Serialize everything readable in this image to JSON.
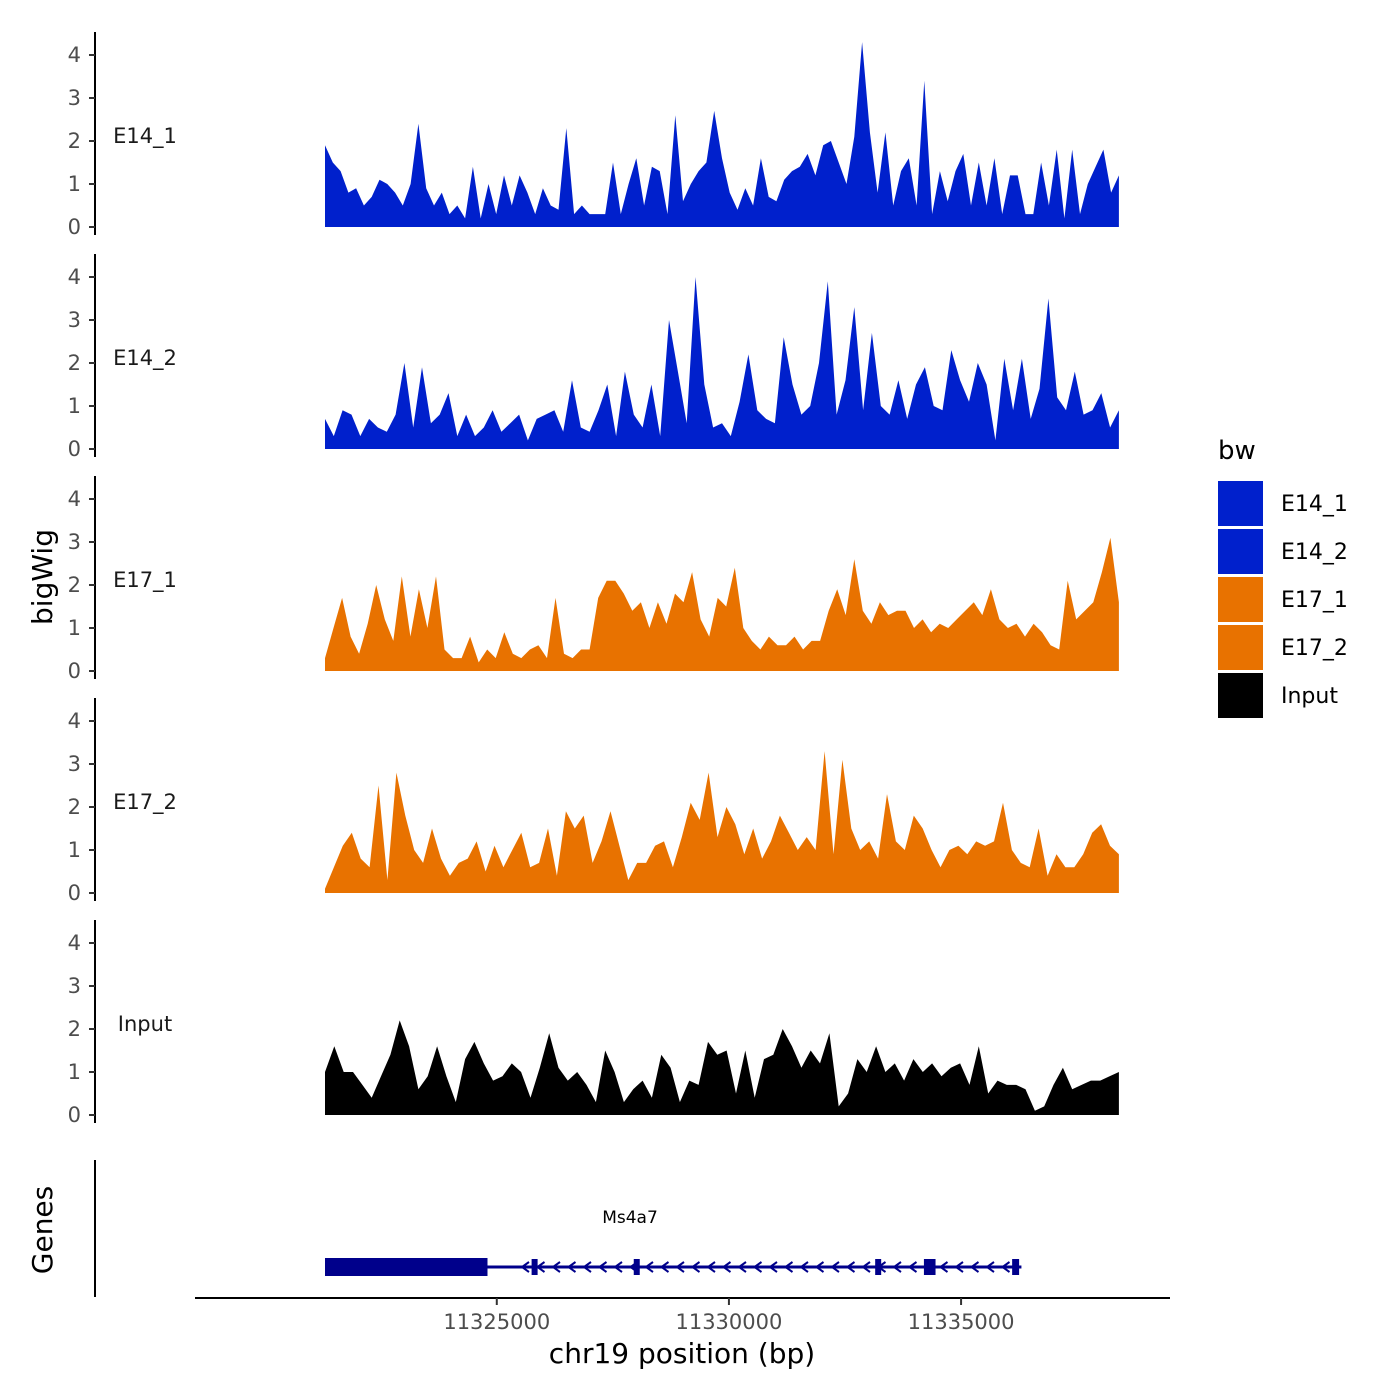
{
  "chart_data": {
    "type": "area",
    "chromosome": "chr19",
    "xlabel": "chr19 position (bp)",
    "ylabel": "bigWig",
    "genes_label": "Genes",
    "x_range": [
      11318500,
      11339500
    ],
    "data_x_range": [
      11321300,
      11338400
    ],
    "y_range": [
      0,
      4.5
    ],
    "y_ticks": [
      0,
      1,
      2,
      3,
      4
    ],
    "x_ticks": [
      11325000,
      11330000,
      11335000
    ],
    "x_tick_labels": [
      "11325000",
      "11330000",
      "11335000"
    ],
    "legend": {
      "title": "bw",
      "entries": [
        {
          "name": "E14_1",
          "color": "#0020CC"
        },
        {
          "name": "E14_2",
          "color": "#0020CC"
        },
        {
          "name": "E17_1",
          "color": "#E87200"
        },
        {
          "name": "E17_2",
          "color": "#E87200"
        },
        {
          "name": "Input",
          "color": "#000000"
        }
      ]
    },
    "series": [
      {
        "name": "E14_1",
        "color": "#0020CC",
        "values": [
          1.9,
          1.5,
          1.3,
          0.8,
          0.9,
          0.5,
          0.7,
          1.1,
          1.0,
          0.8,
          0.5,
          1.0,
          2.4,
          0.9,
          0.5,
          0.8,
          0.3,
          0.5,
          0.2,
          1.4,
          0.2,
          1.0,
          0.3,
          1.2,
          0.5,
          1.2,
          0.8,
          0.3,
          0.9,
          0.5,
          0.4,
          2.3,
          0.3,
          0.5,
          0.3,
          0.3,
          0.3,
          1.5,
          0.3,
          1.0,
          1.6,
          0.5,
          1.4,
          1.3,
          0.3,
          2.6,
          0.6,
          1.0,
          1.3,
          1.5,
          2.7,
          1.6,
          0.8,
          0.4,
          0.9,
          0.5,
          1.6,
          0.7,
          0.6,
          1.1,
          1.3,
          1.4,
          1.7,
          1.2,
          1.9,
          2.0,
          1.5,
          1.0,
          2.1,
          4.3,
          2.2,
          0.8,
          2.2,
          0.5,
          1.3,
          1.6,
          0.5,
          3.4,
          0.3,
          1.3,
          0.6,
          1.3,
          1.7,
          0.5,
          1.5,
          0.5,
          1.6,
          0.3,
          1.2,
          1.2,
          0.3,
          0.3,
          1.5,
          0.5,
          1.8,
          0.2,
          1.8,
          0.3,
          1.0,
          1.4,
          1.8,
          0.8,
          1.2
        ]
      },
      {
        "name": "E14_2",
        "color": "#0020CC",
        "values": [
          0.7,
          0.3,
          0.9,
          0.8,
          0.3,
          0.7,
          0.5,
          0.4,
          0.8,
          2.0,
          0.5,
          1.9,
          0.6,
          0.8,
          1.3,
          0.3,
          0.8,
          0.3,
          0.5,
          0.9,
          0.4,
          0.6,
          0.8,
          0.2,
          0.7,
          0.8,
          0.9,
          0.4,
          1.6,
          0.5,
          0.4,
          0.9,
          1.5,
          0.3,
          1.8,
          0.8,
          0.5,
          1.5,
          0.3,
          3.0,
          1.8,
          0.6,
          4.0,
          1.5,
          0.5,
          0.6,
          0.3,
          1.1,
          2.2,
          0.9,
          0.7,
          0.6,
          2.6,
          1.5,
          0.8,
          1.0,
          2.0,
          3.9,
          0.8,
          1.6,
          3.3,
          0.9,
          2.7,
          1.0,
          0.8,
          1.6,
          0.7,
          1.5,
          1.9,
          1.0,
          0.9,
          2.3,
          1.6,
          1.1,
          2.0,
          1.5,
          0.2,
          2.1,
          0.9,
          2.1,
          0.7,
          1.4,
          3.5,
          1.2,
          0.9,
          1.8,
          0.8,
          0.9,
          1.3,
          0.5,
          0.9
        ]
      },
      {
        "name": "E17_1",
        "color": "#E87200",
        "values": [
          0.3,
          1.0,
          1.7,
          0.8,
          0.4,
          1.1,
          2.0,
          1.2,
          0.7,
          2.2,
          0.8,
          1.9,
          1.0,
          2.2,
          0.5,
          0.3,
          0.3,
          0.8,
          0.2,
          0.5,
          0.3,
          0.9,
          0.4,
          0.3,
          0.5,
          0.6,
          0.3,
          1.7,
          0.4,
          0.3,
          0.5,
          0.5,
          1.7,
          2.1,
          2.1,
          1.8,
          1.4,
          1.6,
          1.0,
          1.6,
          1.1,
          1.8,
          1.6,
          2.3,
          1.2,
          0.8,
          1.7,
          1.5,
          2.4,
          1.0,
          0.7,
          0.5,
          0.8,
          0.6,
          0.6,
          0.8,
          0.5,
          0.7,
          0.7,
          1.4,
          1.9,
          1.3,
          2.6,
          1.4,
          1.1,
          1.6,
          1.3,
          1.4,
          1.4,
          1.0,
          1.2,
          0.9,
          1.1,
          1.0,
          1.2,
          1.4,
          1.6,
          1.3,
          1.9,
          1.2,
          1.0,
          1.1,
          0.8,
          1.1,
          0.9,
          0.6,
          0.5,
          2.1,
          1.2,
          1.4,
          1.6,
          2.3,
          3.1,
          1.6
        ]
      },
      {
        "name": "E17_2",
        "color": "#E87200",
        "values": [
          0.1,
          0.6,
          1.1,
          1.4,
          0.8,
          0.6,
          2.5,
          0.3,
          2.8,
          1.8,
          1.0,
          0.7,
          1.5,
          0.8,
          0.4,
          0.7,
          0.8,
          1.2,
          0.5,
          1.1,
          0.6,
          1.0,
          1.4,
          0.6,
          0.7,
          1.5,
          0.4,
          1.9,
          1.5,
          1.8,
          0.7,
          1.2,
          1.9,
          1.1,
          0.3,
          0.7,
          0.7,
          1.1,
          1.2,
          0.6,
          1.3,
          2.1,
          1.7,
          2.8,
          1.3,
          2.0,
          1.6,
          0.9,
          1.5,
          0.8,
          1.2,
          1.8,
          1.4,
          1.0,
          1.3,
          1.0,
          3.3,
          0.9,
          3.1,
          1.5,
          1.0,
          1.2,
          0.8,
          2.3,
          1.2,
          1.0,
          1.8,
          1.5,
          1.0,
          0.6,
          1.0,
          1.1,
          0.9,
          1.2,
          1.1,
          1.2,
          2.1,
          1.0,
          0.7,
          0.6,
          1.5,
          0.4,
          0.9,
          0.6,
          0.6,
          0.9,
          1.4,
          1.6,
          1.1,
          0.9
        ]
      },
      {
        "name": "Input",
        "color": "#000000",
        "values": [
          1.0,
          1.6,
          1.0,
          1.0,
          0.7,
          0.4,
          0.9,
          1.4,
          2.2,
          1.6,
          0.6,
          0.9,
          1.6,
          0.9,
          0.3,
          1.3,
          1.7,
          1.2,
          0.8,
          0.9,
          1.2,
          1.0,
          0.4,
          1.1,
          1.9,
          1.1,
          0.8,
          1.0,
          0.7,
          0.3,
          1.5,
          1.0,
          0.3,
          0.6,
          0.8,
          0.4,
          1.4,
          1.1,
          0.3,
          0.8,
          0.7,
          1.7,
          1.4,
          1.5,
          0.5,
          1.5,
          0.4,
          1.3,
          1.4,
          2.0,
          1.6,
          1.1,
          1.5,
          1.2,
          1.9,
          0.2,
          0.5,
          1.3,
          1.0,
          1.6,
          1.0,
          1.2,
          0.8,
          1.3,
          1.0,
          1.2,
          0.9,
          1.1,
          1.2,
          0.7,
          1.6,
          0.5,
          0.8,
          0.7,
          0.7,
          0.6,
          0.1,
          0.2,
          0.7,
          1.1,
          0.6,
          0.7,
          0.8,
          0.8,
          0.9,
          1.0
        ]
      }
    ],
    "gene": {
      "name": "Ms4a7",
      "strand": "-",
      "start": 11321300,
      "end": 11336300,
      "exons": [
        [
          11321300,
          11324800
        ],
        [
          11325750,
          11325850
        ],
        [
          11327950,
          11328050
        ],
        [
          11333150,
          11333250
        ],
        [
          11334200,
          11334450
        ],
        [
          11336100,
          11336250
        ]
      ]
    }
  }
}
